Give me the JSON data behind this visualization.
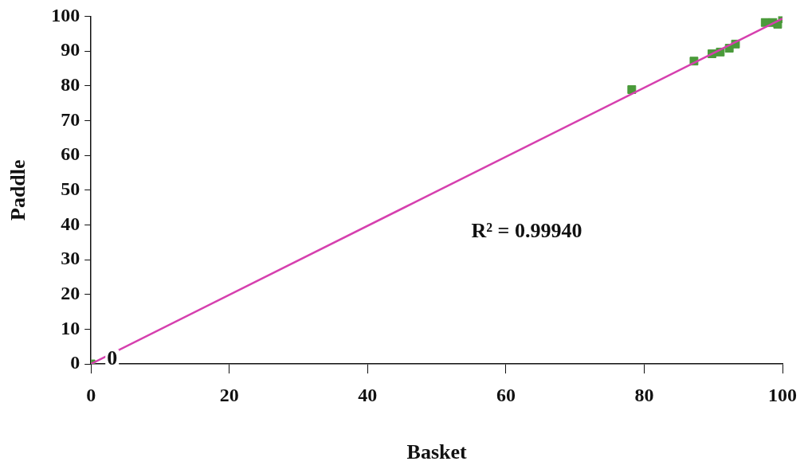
{
  "chart_data": {
    "type": "scatter",
    "xlabel": "Basket",
    "ylabel": "Paddle",
    "xlim": [
      0,
      100
    ],
    "xticks": [
      0,
      20,
      40,
      60,
      80,
      100
    ],
    "ylim": [
      0,
      100
    ],
    "yticks": [
      0,
      10,
      20,
      30,
      40,
      50,
      60,
      70,
      80,
      90,
      100
    ],
    "grid": false,
    "legend": false,
    "marker": "square",
    "series": [
      {
        "color": "#4a9a3a",
        "x": [
          0,
          78.2,
          87.2,
          89.8,
          91.0,
          92.3,
          93.2,
          97.5,
          98.6,
          99.3,
          100
        ],
        "values": [
          0,
          78.9,
          87.1,
          89.2,
          89.7,
          90.8,
          92.0,
          98.2,
          98.2,
          97.7,
          99.3
        ]
      },
      {
        "type": "line",
        "color": "#d63fae",
        "marker": "none",
        "x": [
          0,
          100
        ],
        "values": [
          0,
          99.3
        ]
      }
    ],
    "annotations": [
      {
        "text": "0",
        "x": 0,
        "y": 0
      },
      "R² = 0.99940"
    ]
  }
}
